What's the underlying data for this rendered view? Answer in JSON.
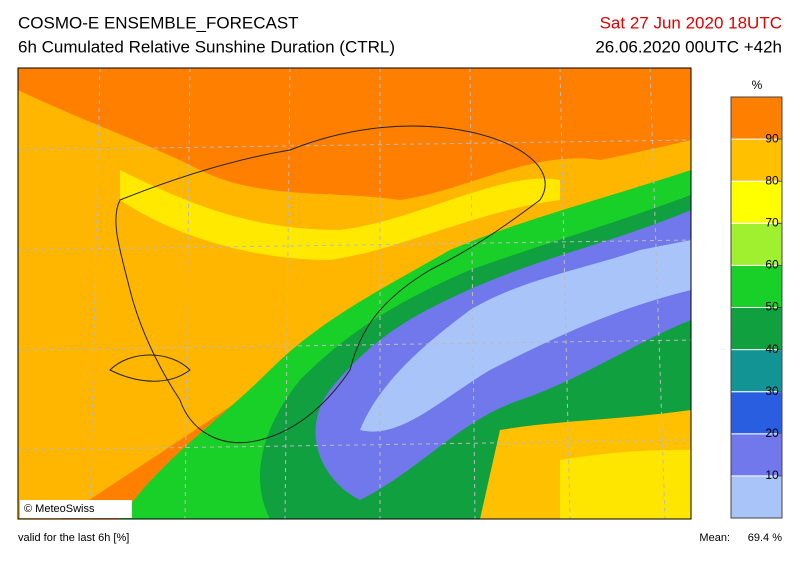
{
  "header": {
    "title": "COSMO-E ENSEMBLE_FORECAST",
    "subtitle": "6h Cumulated Relative Sunshine Duration (CTRL)",
    "valid_time": "Sat 27 Jun 2020 18UTC",
    "run": "26.06.2020 00UTC +42h"
  },
  "colorbar": {
    "unit": "%",
    "range": [
      0,
      100
    ],
    "ticks": [
      10,
      20,
      30,
      40,
      50,
      60,
      70,
      80,
      90
    ],
    "colors": [
      "#a8c4f8",
      "#7078ec",
      "#2a5ee0",
      "#129494",
      "#10a040",
      "#18d028",
      "#a0f030",
      "#ffff00",
      "#ffc000",
      "#ff8000"
    ]
  },
  "map": {
    "copyright": "© MeteoSwiss"
  },
  "footer": {
    "validity": "valid for the last 6h [%]",
    "mean_label": "Mean:",
    "mean_value": "69.4 %"
  }
}
